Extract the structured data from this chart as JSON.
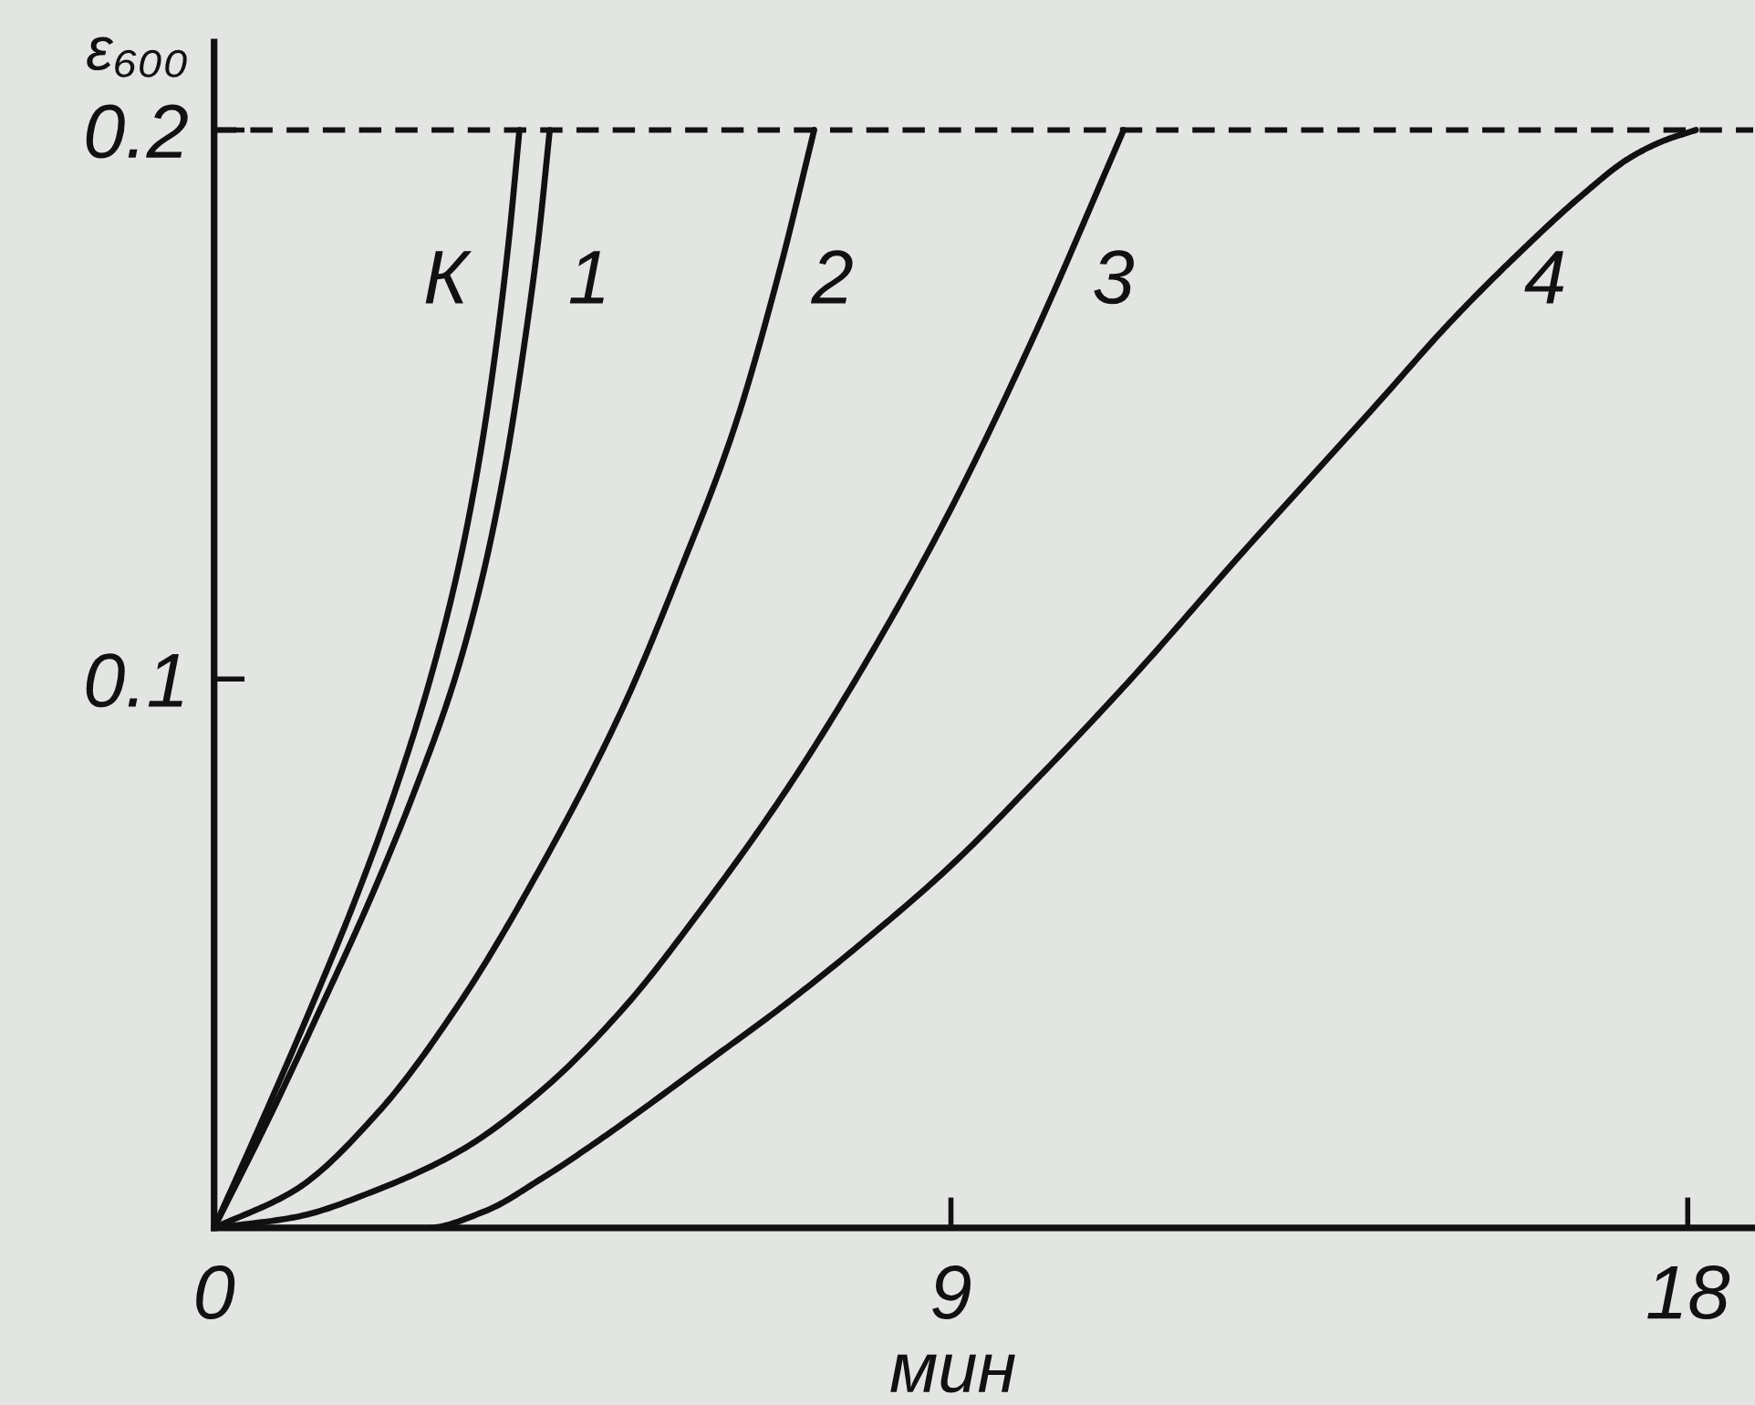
{
  "chart_data": {
    "type": "line",
    "xlabel": "мин",
    "ylabel": "ε₆₀₀",
    "xlim": [
      0,
      18.8
    ],
    "ylim": [
      0,
      0.216
    ],
    "xticks": [
      0,
      9,
      18
    ],
    "yticks": [
      0.1,
      0.2
    ],
    "grid": false,
    "legend": false,
    "marker": "none",
    "line_style": "solid",
    "ref_lines": [
      {
        "axis": "y",
        "value": 0.2,
        "line_style": "dashed",
        "color": "#111111"
      }
    ],
    "series": [
      {
        "name": "К",
        "color": "#111111",
        "x": [
          0,
          0.6,
          1.18,
          1.73,
          2.22,
          2.64,
          2.98,
          3.24,
          3.44,
          3.6,
          3.73
        ],
        "values": [
          0,
          0.02,
          0.04,
          0.06,
          0.08,
          0.1,
          0.12,
          0.14,
          0.16,
          0.18,
          0.2
        ]
      },
      {
        "name": "1",
        "color": "#111111",
        "x": [
          0,
          0.67,
          1.3,
          1.91,
          2.46,
          2.94,
          3.3,
          3.57,
          3.78,
          3.96,
          4.1
        ],
        "values": [
          0,
          0.02,
          0.04,
          0.06,
          0.08,
          0.1,
          0.12,
          0.14,
          0.16,
          0.18,
          0.2
        ]
      },
      {
        "name": "2",
        "color": "#111111",
        "x": [
          0,
          1,
          2,
          3,
          4,
          5,
          5.7,
          6.36,
          6.9,
          7.33
        ],
        "values": [
          0,
          0.007,
          0.021,
          0.041,
          0.066,
          0.095,
          0.12,
          0.146,
          0.174,
          0.2
        ]
      },
      {
        "name": "3",
        "color": "#111111",
        "x": [
          0,
          1,
          2,
          3,
          4,
          5,
          6,
          7,
          8,
          9,
          10,
          11.11
        ],
        "values": [
          0,
          0.002,
          0.007,
          0.014,
          0.025,
          0.04,
          0.059,
          0.08,
          0.104,
          0.131,
          0.162,
          0.2
        ]
      },
      {
        "name": "4",
        "color": "#111111",
        "x": [
          0,
          2.6,
          3.3,
          4.0,
          4.8,
          6.0,
          7.0,
          8.0,
          9.0,
          10.0,
          11.2,
          12.5,
          14.2,
          15.1,
          15.9,
          16.7,
          17.3,
          17.7,
          18.1
        ],
        "values": [
          0,
          0,
          0.003,
          0.009,
          0.017,
          0.03,
          0.041,
          0.053,
          0.066,
          0.081,
          0.1,
          0.122,
          0.15,
          0.165,
          0.177,
          0.188,
          0.195,
          0.198,
          0.2
        ]
      }
    ]
  }
}
